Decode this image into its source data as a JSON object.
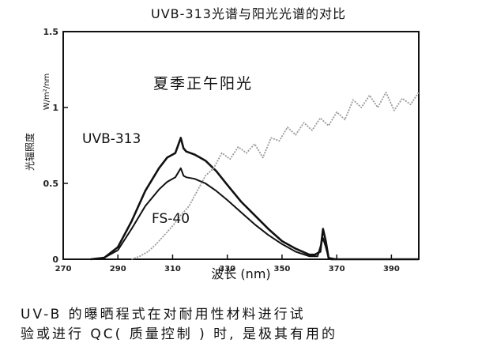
{
  "chart_data": {
    "type": "line",
    "title": "UVB-313光谱与阳光光谱的对比",
    "xlabel": "波长 (nm)",
    "ylabel": "光辐照度",
    "ylabel_unit": "W/m²/nm",
    "xlim": [
      270,
      400
    ],
    "ylim": [
      0,
      1.5
    ],
    "xticks": [
      "270",
      "290",
      "310",
      "330",
      "350",
      "370",
      "390"
    ],
    "yticks": [
      "0",
      "0.5",
      "1",
      "1.5"
    ],
    "grid": false,
    "legend": "inline labels",
    "series": [
      {
        "name": "UVB-313",
        "color": "#111111",
        "x": [
          280,
          285,
          290,
          295,
          300,
          305,
          308,
          311,
          313,
          314,
          315,
          318,
          322,
          326,
          330,
          335,
          340,
          345,
          350,
          355,
          360,
          362,
          364,
          365,
          366,
          367,
          368,
          370,
          375,
          380,
          385,
          390,
          395,
          400
        ],
        "y": [
          0.0,
          0.01,
          0.08,
          0.25,
          0.45,
          0.6,
          0.67,
          0.7,
          0.8,
          0.73,
          0.71,
          0.69,
          0.65,
          0.58,
          0.49,
          0.38,
          0.29,
          0.2,
          0.12,
          0.07,
          0.03,
          0.03,
          0.05,
          0.2,
          0.12,
          0.01,
          0.0,
          0.0,
          0.0,
          0.0,
          0.0,
          0.0,
          0.0,
          0.0
        ]
      },
      {
        "name": "FS-40",
        "color": "#111111",
        "x": [
          280,
          285,
          290,
          295,
          300,
          305,
          308,
          311,
          313,
          314,
          315,
          318,
          322,
          326,
          330,
          335,
          340,
          345,
          350,
          355,
          360,
          363,
          365,
          366,
          367,
          370,
          375,
          380,
          390,
          400
        ],
        "y": [
          0.0,
          0.01,
          0.06,
          0.2,
          0.35,
          0.46,
          0.51,
          0.54,
          0.6,
          0.55,
          0.54,
          0.53,
          0.5,
          0.45,
          0.39,
          0.31,
          0.23,
          0.16,
          0.1,
          0.05,
          0.02,
          0.02,
          0.14,
          0.08,
          0.01,
          0.0,
          0.0,
          0.0,
          0.0,
          0.0
        ]
      },
      {
        "name": "夏季正午阳光",
        "color": "#9a9a9a",
        "x": [
          295,
          298,
          301,
          304,
          307,
          310,
          313,
          316,
          319,
          322,
          325,
          328,
          331,
          334,
          337,
          340,
          343,
          346,
          349,
          352,
          355,
          358,
          361,
          364,
          367,
          370,
          373,
          376,
          379,
          382,
          385,
          388,
          391,
          394,
          397,
          400
        ],
        "y": [
          0.0,
          0.02,
          0.05,
          0.1,
          0.16,
          0.22,
          0.29,
          0.35,
          0.45,
          0.55,
          0.6,
          0.7,
          0.66,
          0.74,
          0.7,
          0.76,
          0.67,
          0.8,
          0.78,
          0.87,
          0.82,
          0.9,
          0.85,
          0.93,
          0.88,
          0.97,
          0.92,
          1.05,
          1.0,
          1.08,
          1.0,
          1.1,
          0.98,
          1.06,
          1.02,
          1.1
        ]
      }
    ]
  },
  "caption": {
    "line1": "UV-B 的曝晒程式在对耐用性材料进行试",
    "line2": "验或进行 QC( 质量控制 ) 时, 是极其有用的"
  }
}
